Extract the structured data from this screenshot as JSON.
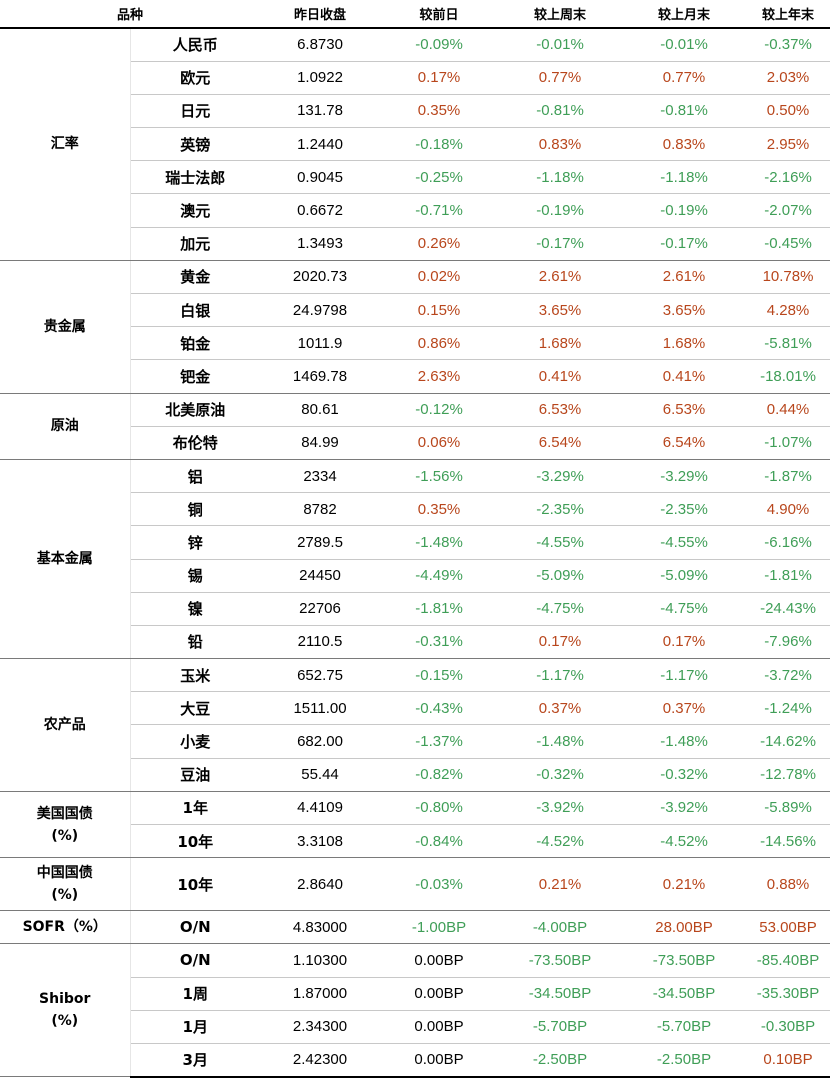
{
  "header": {
    "product": "品种",
    "close": "昨日收盘",
    "vs_prev_day": "较前日",
    "vs_last_week": "较上周末",
    "vs_last_month": "较上月末",
    "vs_last_year": "较上年末"
  },
  "colors": {
    "positive": "#b8461c",
    "negative": "#3f9e57",
    "neutral": "#000000"
  },
  "groups": [
    {
      "name": "汇率",
      "rows": [
        {
          "item": "人民币",
          "close": "6.8730",
          "d": "-0.09%",
          "w": "-0.01%",
          "m": "-0.01%",
          "y": "-0.37%"
        },
        {
          "item": "欧元",
          "close": "1.0922",
          "d": "0.17%",
          "w": "0.77%",
          "m": "0.77%",
          "y": "2.03%"
        },
        {
          "item": "日元",
          "close": "131.78",
          "d": "0.35%",
          "w": "-0.81%",
          "m": "-0.81%",
          "y": "0.50%"
        },
        {
          "item": "英镑",
          "close": "1.2440",
          "d": "-0.18%",
          "w": "0.83%",
          "m": "0.83%",
          "y": "2.95%"
        },
        {
          "item": "瑞士法郎",
          "close": "0.9045",
          "d": "-0.25%",
          "w": "-1.18%",
          "m": "-1.18%",
          "y": "-2.16%"
        },
        {
          "item": "澳元",
          "close": "0.6672",
          "d": "-0.71%",
          "w": "-0.19%",
          "m": "-0.19%",
          "y": "-2.07%"
        },
        {
          "item": "加元",
          "close": "1.3493",
          "d": "0.26%",
          "w": "-0.17%",
          "m": "-0.17%",
          "y": "-0.45%"
        }
      ]
    },
    {
      "name": "贵金属",
      "rows": [
        {
          "item": "黄金",
          "close": "2020.73",
          "d": "0.02%",
          "w": "2.61%",
          "m": "2.61%",
          "y": "10.78%"
        },
        {
          "item": "白银",
          "close": "24.9798",
          "d": "0.15%",
          "w": "3.65%",
          "m": "3.65%",
          "y": "4.28%"
        },
        {
          "item": "铂金",
          "close": "1011.9",
          "d": "0.86%",
          "w": "1.68%",
          "m": "1.68%",
          "y": "-5.81%"
        },
        {
          "item": "钯金",
          "close": "1469.78",
          "d": "2.63%",
          "w": "0.41%",
          "m": "0.41%",
          "y": "-18.01%"
        }
      ]
    },
    {
      "name": "原油",
      "rows": [
        {
          "item": "北美原油",
          "close": "80.61",
          "d": "-0.12%",
          "w": "6.53%",
          "m": "6.53%",
          "y": "0.44%"
        },
        {
          "item": "布伦特",
          "close": "84.99",
          "d": "0.06%",
          "w": "6.54%",
          "m": "6.54%",
          "y": "-1.07%"
        }
      ]
    },
    {
      "name": "基本金属",
      "rows": [
        {
          "item": "铝",
          "close": "2334",
          "d": "-1.56%",
          "w": "-3.29%",
          "m": "-3.29%",
          "y": "-1.87%"
        },
        {
          "item": "铜",
          "close": "8782",
          "d": "0.35%",
          "w": "-2.35%",
          "m": "-2.35%",
          "y": "4.90%"
        },
        {
          "item": "锌",
          "close": "2789.5",
          "d": "-1.48%",
          "w": "-4.55%",
          "m": "-4.55%",
          "y": "-6.16%"
        },
        {
          "item": "锡",
          "close": "24450",
          "d": "-4.49%",
          "w": "-5.09%",
          "m": "-5.09%",
          "y": "-1.81%"
        },
        {
          "item": "镍",
          "close": "22706",
          "d": "-1.81%",
          "w": "-4.75%",
          "m": "-4.75%",
          "y": "-24.43%"
        },
        {
          "item": "铅",
          "close": "2110.5",
          "d": "-0.31%",
          "w": "0.17%",
          "m": "0.17%",
          "y": "-7.96%"
        }
      ]
    },
    {
      "name": "农产品",
      "rows": [
        {
          "item": "玉米",
          "close": "652.75",
          "d": "-0.15%",
          "w": "-1.17%",
          "m": "-1.17%",
          "y": "-3.72%"
        },
        {
          "item": "大豆",
          "close": "1511.00",
          "d": "-0.43%",
          "w": "0.37%",
          "m": "0.37%",
          "y": "-1.24%"
        },
        {
          "item": "小麦",
          "close": "682.00",
          "d": "-1.37%",
          "w": "-1.48%",
          "m": "-1.48%",
          "y": "-14.62%"
        },
        {
          "item": "豆油",
          "close": "55.44",
          "d": "-0.82%",
          "w": "-0.32%",
          "m": "-0.32%",
          "y": "-12.78%"
        }
      ]
    },
    {
      "name": "美国国债\n(%)",
      "rows": [
        {
          "item": "1年",
          "close": "4.4109",
          "d": "-0.80%",
          "w": "-3.92%",
          "m": "-3.92%",
          "y": "-5.89%"
        },
        {
          "item": "10年",
          "close": "3.3108",
          "d": "-0.84%",
          "w": "-4.52%",
          "m": "-4.52%",
          "y": "-14.56%"
        }
      ]
    },
    {
      "name": "中国国债\n(%)",
      "tall": true,
      "rows": [
        {
          "item": "10年",
          "close": "2.8640",
          "d": "-0.03%",
          "w": "0.21%",
          "m": "0.21%",
          "y": "0.88%"
        }
      ]
    },
    {
      "name": "SOFR（%）",
      "rows": [
        {
          "item": "O/N",
          "close": "4.83000",
          "d": "-1.00BP",
          "w": "-4.00BP",
          "m": "28.00BP",
          "y": "53.00BP"
        }
      ]
    },
    {
      "name": "Shibor\n(%)",
      "rows": [
        {
          "item": "O/N",
          "close": "1.10300",
          "d": "0.00BP",
          "w": "-73.50BP",
          "m": "-73.50BP",
          "y": "-85.40BP"
        },
        {
          "item": "1周",
          "close": "1.87000",
          "d": "0.00BP",
          "w": "-34.50BP",
          "m": "-34.50BP",
          "y": "-35.30BP"
        },
        {
          "item": "1月",
          "close": "2.34300",
          "d": "0.00BP",
          "w": "-5.70BP",
          "m": "-5.70BP",
          "y": "-0.30BP"
        },
        {
          "item": "3月",
          "close": "2.42300",
          "d": "0.00BP",
          "w": "-2.50BP",
          "m": "-2.50BP",
          "y": "0.10BP"
        }
      ]
    }
  ]
}
